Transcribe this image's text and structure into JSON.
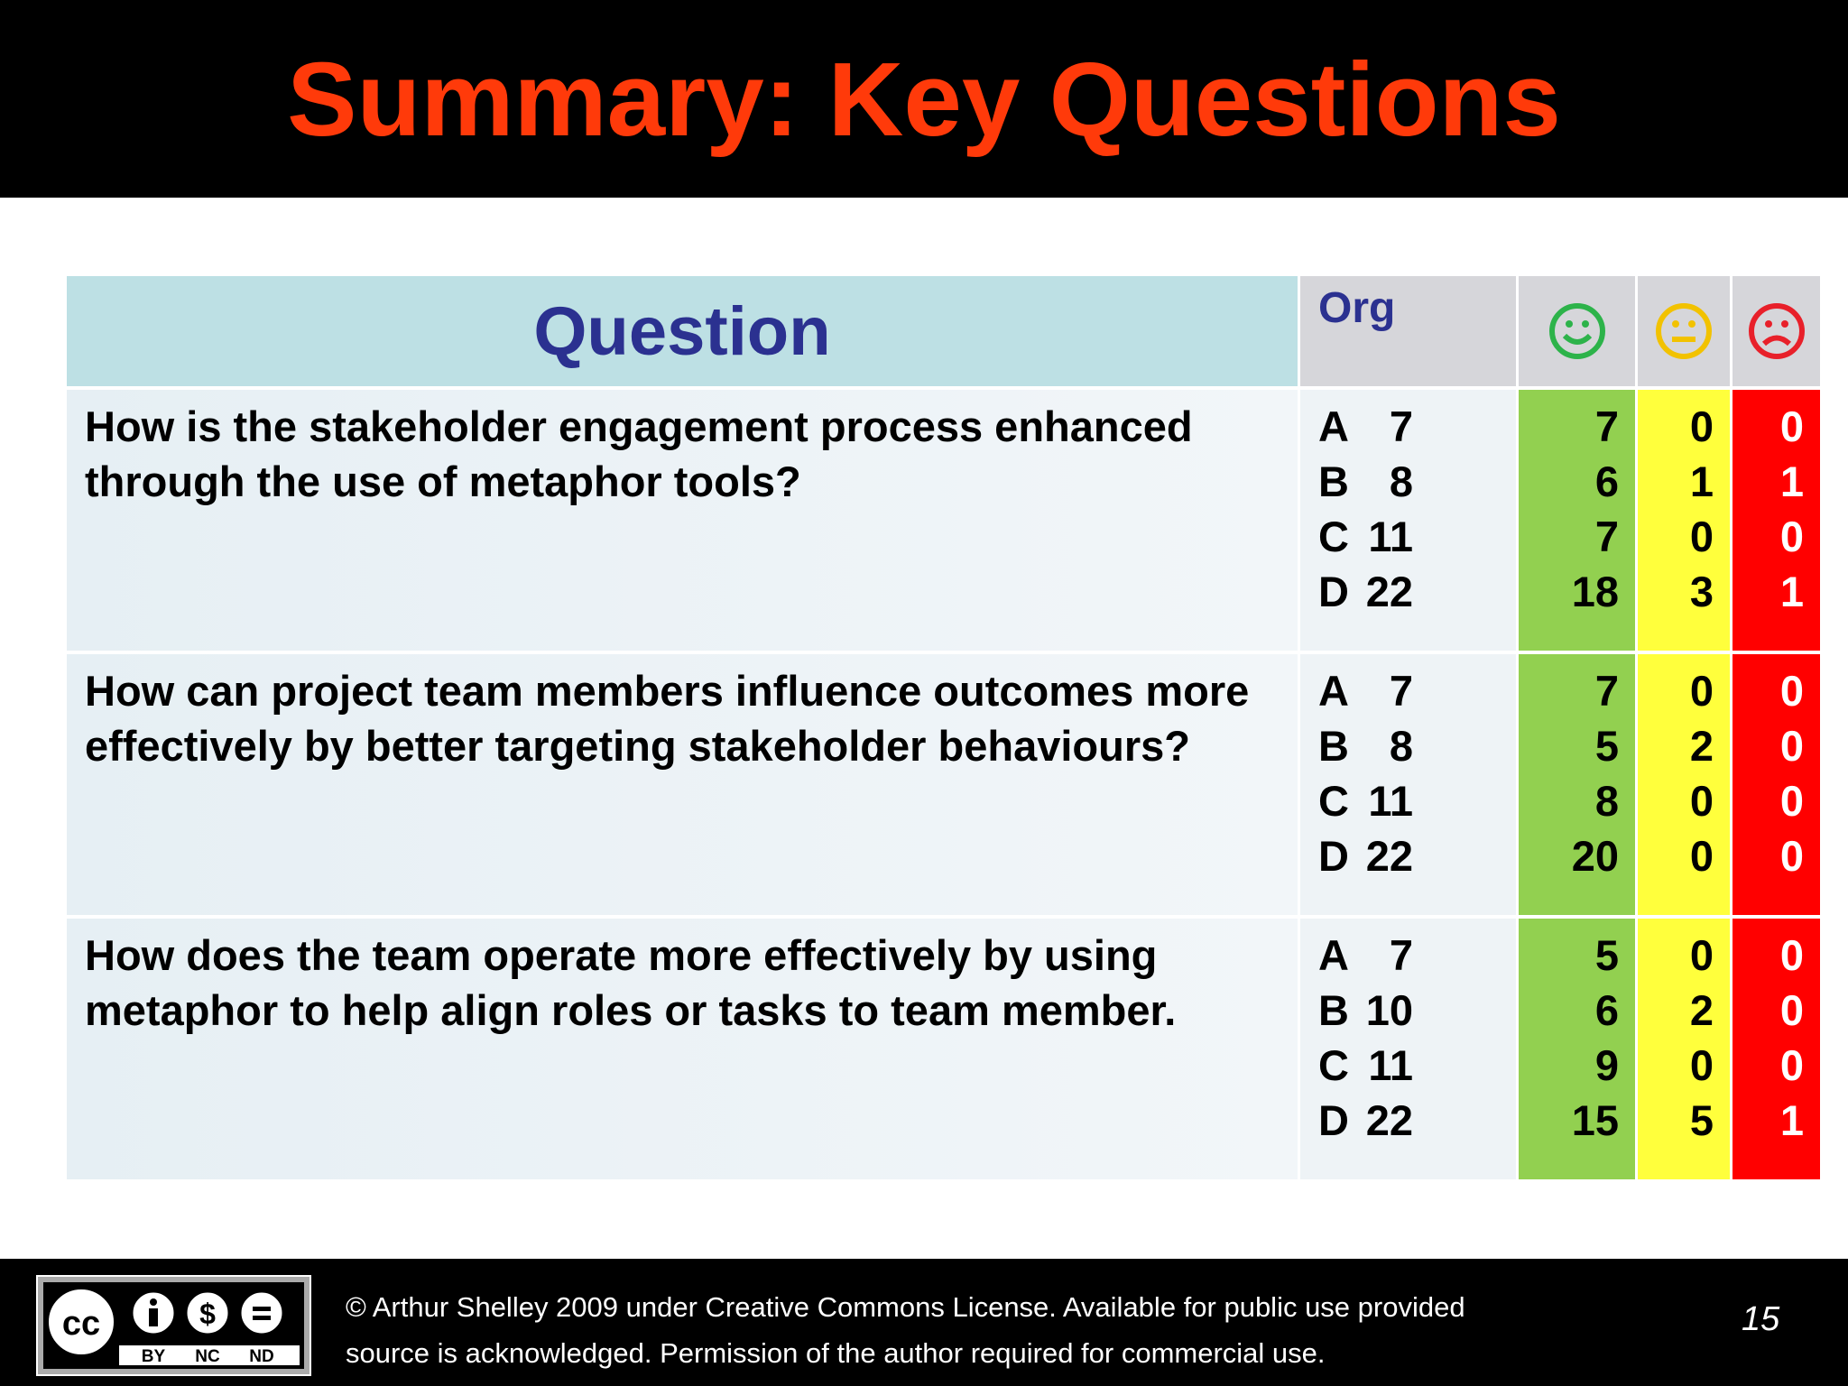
{
  "header": {
    "title": "Summary: Key Questions"
  },
  "table": {
    "columns": {
      "question": "Question",
      "org": "Org"
    },
    "rows": [
      {
        "question": "How is the stakeholder engagement process enhanced through the use of metaphor tools?",
        "orgs": [
          {
            "org": "A",
            "n": 7
          },
          {
            "org": "B",
            "n": 8
          },
          {
            "org": "C",
            "n": 11
          },
          {
            "org": "D",
            "n": 22
          }
        ],
        "happy": [
          7,
          6,
          7,
          18
        ],
        "neutral": [
          0,
          1,
          0,
          3
        ],
        "sad": [
          0,
          1,
          0,
          1
        ]
      },
      {
        "question": "How can project team members influence outcomes more effectively by better targeting stakeholder behaviours?",
        "orgs": [
          {
            "org": "A",
            "n": 7
          },
          {
            "org": "B",
            "n": 8
          },
          {
            "org": "C",
            "n": 11
          },
          {
            "org": "D",
            "n": 22
          }
        ],
        "happy": [
          7,
          5,
          8,
          20
        ],
        "neutral": [
          0,
          2,
          0,
          0
        ],
        "sad": [
          0,
          0,
          0,
          0
        ]
      },
      {
        "question": "How does the team operate more effectively by using metaphor to help align roles or tasks to team member.",
        "orgs": [
          {
            "org": "A",
            "n": 7
          },
          {
            "org": "B",
            "n": 10
          },
          {
            "org": "C",
            "n": 11
          },
          {
            "org": "D",
            "n": 22
          }
        ],
        "happy": [
          5,
          6,
          9,
          15
        ],
        "neutral": [
          0,
          2,
          0,
          5
        ],
        "sad": [
          0,
          0,
          0,
          1
        ]
      }
    ]
  },
  "footer": {
    "badge": {
      "cc": "cc",
      "terms": [
        "BY",
        "NC",
        "ND"
      ]
    },
    "license": [
      "© Arthur Shelley 2009 under Creative Commons License.  Available for public use provided",
      "source is acknowledged.  Permission of the author required for commercial use."
    ],
    "page": "15"
  }
}
